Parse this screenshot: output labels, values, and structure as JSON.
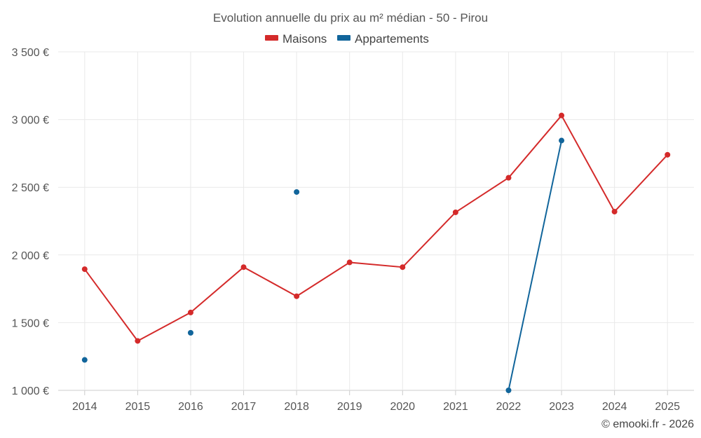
{
  "chart_data": {
    "type": "line",
    "title": "Evolution annuelle du prix au m² médian - 50 - Pirou",
    "categories": [
      "2014",
      "2015",
      "2016",
      "2017",
      "2018",
      "2019",
      "2020",
      "2021",
      "2022",
      "2023",
      "2024",
      "2025"
    ],
    "series": [
      {
        "name": "Maisons",
        "color": "#d42a2a",
        "values": [
          1895,
          1365,
          1575,
          1910,
          1695,
          1945,
          1910,
          2315,
          2570,
          3030,
          2320,
          2740
        ]
      },
      {
        "name": "Appartements",
        "color": "#11659b",
        "values": [
          1225,
          null,
          1425,
          null,
          2465,
          null,
          null,
          null,
          1000,
          2845,
          null,
          null
        ]
      }
    ],
    "ylim": [
      1000,
      3500
    ],
    "yticks": [
      1000,
      1500,
      2000,
      2500,
      3000,
      3500
    ],
    "ytick_labels": [
      "1 000 €",
      "1 500 €",
      "2 000 €",
      "2 500 €",
      "3 000 €",
      "3 500 €"
    ],
    "xlabel": "",
    "ylabel": "",
    "grid": true,
    "legend_position": "top-center"
  },
  "credit": "© emooki.fr - 2026"
}
